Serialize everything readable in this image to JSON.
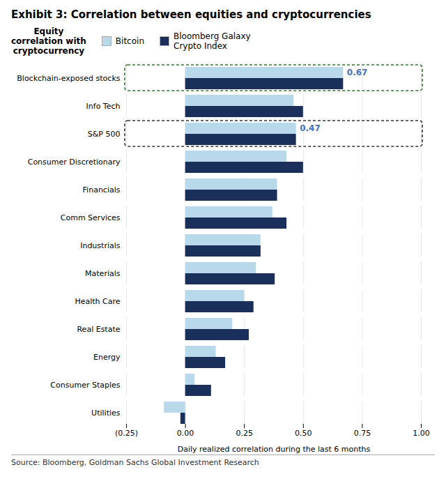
{
  "chart_data": {
    "type": "bar",
    "orientation": "horizontal",
    "title": "Exhibit 3: Correlation between equities and cryptocurrencies",
    "categories": [
      "Blockchain-exposed stocks",
      "Info Tech",
      "S&P 500",
      "Consumer Discretionary",
      "Financials",
      "Comm Services",
      "Industrials",
      "Materials",
      "Health Care",
      "Real Estate",
      "Energy",
      "Consumer Staples",
      "Utilities"
    ],
    "series": [
      {
        "name": "Bitcoin",
        "color": "#b8d9ea",
        "values": [
          0.67,
          0.46,
          0.47,
          0.43,
          0.39,
          0.37,
          0.32,
          0.3,
          0.25,
          0.2,
          0.13,
          0.04,
          -0.09
        ]
      },
      {
        "name": "Bloomberg Galaxy\nCrypto Index",
        "color": "#1a2f5a",
        "values": [
          0.67,
          0.5,
          0.47,
          0.5,
          0.39,
          0.43,
          0.32,
          0.38,
          0.29,
          0.27,
          0.17,
          0.11,
          -0.02
        ]
      }
    ],
    "xlabel": "Daily realized correlation during the last 6 months",
    "xlim": [
      -0.25,
      1.0
    ],
    "xticks": [
      {
        "value": -0.25,
        "label": "(0.25)"
      },
      {
        "value": 0,
        "label": "0.00"
      },
      0.25,
      {
        "value": 0.5,
        "label": "0.50"
      },
      0.75,
      {
        "value": 1.0,
        "label": "1.00"
      }
    ],
    "grid": true,
    "legend": "top",
    "legend_title": "Equity\ncorrelation with\ncryptocurrency",
    "annotations": [
      {
        "text": "0.67",
        "category": "Blockchain-exposed stocks",
        "series": "Bitcoin",
        "color": "#4472c4",
        "box_color": "#2d7a2d"
      },
      {
        "text": "0.47",
        "category": "S&P 500",
        "series": "Bitcoin",
        "color": "#4472c4",
        "box_color": "#333333"
      }
    ],
    "source": "Source: Bloomberg, Goldman Sachs Global Investment Research"
  }
}
